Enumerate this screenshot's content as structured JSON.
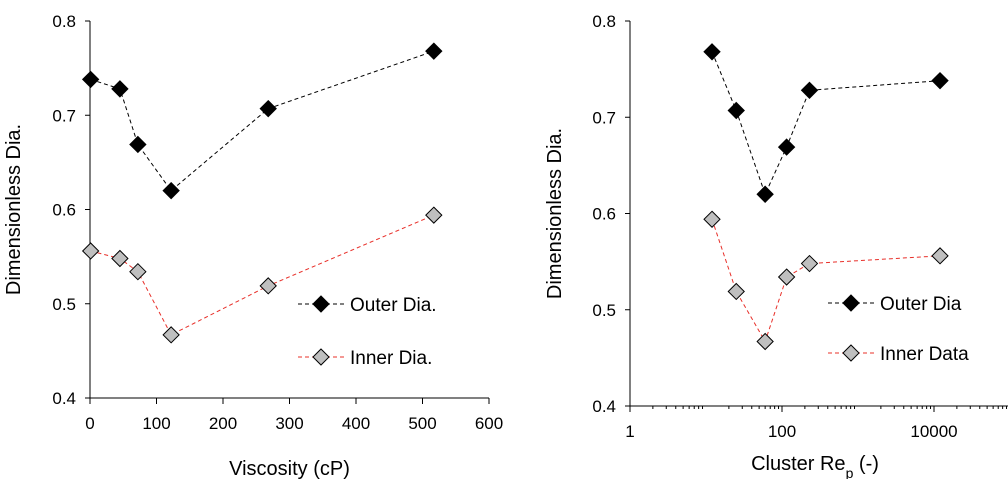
{
  "chart_data": [
    {
      "type": "scatter",
      "xlabel": "Viscosity (cP)",
      "ylabel": "Dimensionless Dia.",
      "xlim": [
        0,
        600
      ],
      "ylim": [
        0.4,
        0.8
      ],
      "x_scale": "linear",
      "xticks": [
        0,
        100,
        200,
        300,
        400,
        500,
        600
      ],
      "xtick_labels": [
        "0",
        "100",
        "200",
        "300",
        "400",
        "500",
        "600"
      ],
      "yticks": [
        0.4,
        0.5,
        0.6,
        0.7,
        0.8
      ],
      "ytick_labels": [
        "0.4",
        "0.5",
        "0.6",
        "0.7",
        "0.8"
      ],
      "grid": false,
      "legend_position": "bottom-right",
      "series": [
        {
          "name": "Outer Dia.",
          "marker": "diamond",
          "marker_color": "#000000",
          "line_color": "#000000",
          "line_style": "dashed",
          "x": [
            1,
            45,
            72,
            122,
            268,
            517
          ],
          "y": [
            0.738,
            0.728,
            0.669,
            0.62,
            0.707,
            0.768
          ]
        },
        {
          "name": "Inner Dia.",
          "marker": "diamond",
          "marker_color": "#bfbfbf",
          "line_color": "#e8302a",
          "line_style": "dashed",
          "x": [
            1,
            45,
            72,
            122,
            268,
            517
          ],
          "y": [
            0.556,
            0.548,
            0.534,
            0.467,
            0.519,
            0.594
          ]
        }
      ]
    },
    {
      "type": "scatter",
      "xlabel": "Cluster Re",
      "xlabel_sub": "p",
      "xlabel_suffix": " (-)",
      "ylabel": "Dimensionless Dia.",
      "xlim": [
        1,
        100000
      ],
      "ylim": [
        0.4,
        0.8
      ],
      "x_scale": "log",
      "xticks": [
        1,
        100,
        10000
      ],
      "xtick_labels": [
        "1",
        "100",
        "10000"
      ],
      "yticks": [
        0.4,
        0.5,
        0.6,
        0.7,
        0.8
      ],
      "ytick_labels": [
        "0.4",
        "0.5",
        "0.6",
        "0.7",
        "0.8"
      ],
      "grid": false,
      "legend_position": "bottom-right",
      "series": [
        {
          "name": "Outer Dia",
          "marker": "diamond",
          "marker_color": "#000000",
          "line_color": "#000000",
          "line_style": "dashed",
          "x": [
            12,
            25,
            60,
            115,
            230,
            12000
          ],
          "y": [
            0.768,
            0.707,
            0.62,
            0.669,
            0.728,
            0.738
          ]
        },
        {
          "name": "Inner Data",
          "marker": "diamond",
          "marker_color": "#bfbfbf",
          "line_color": "#e8302a",
          "line_style": "dashed",
          "x": [
            12,
            25,
            60,
            115,
            230,
            12000
          ],
          "y": [
            0.594,
            0.519,
            0.467,
            0.534,
            0.548,
            0.556
          ]
        }
      ]
    }
  ]
}
